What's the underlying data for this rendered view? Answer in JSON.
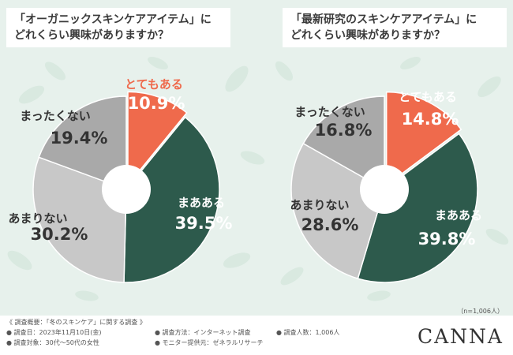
{
  "colors": {
    "totemo": "#ef6a4c",
    "maa": "#2d5a4c",
    "amari": "#c8c8c8",
    "mattaku": "#a9a9a9",
    "background": "#e7f1ec"
  },
  "chart_data": [
    {
      "type": "pie",
      "title": "「オーガニックスキンケアアイテム」にどれくらい興味がありますか？",
      "title_lines": [
        "「オーガニックスキンケアアイテム」に",
        "どれくらい興味がありますか？"
      ],
      "labels": [
        "とてもある",
        "まあある",
        "あまりない",
        "まったくない"
      ],
      "values": [
        10.9,
        39.5,
        30.2,
        19.4
      ],
      "value_labels": [
        "10.9%",
        "39.5%",
        "30.2%",
        "19.4%"
      ],
      "donut_hole": true
    },
    {
      "type": "pie",
      "title": "「最新研究のスキンケアアイテム」にどれくらい興味がありますか？",
      "title_lines": [
        "「最新研究のスキンケアアイテム」に",
        "どれくらい興味がありますか？"
      ],
      "labels": [
        "とてもある",
        "まあある",
        "あまりない",
        "まったくない"
      ],
      "values": [
        14.8,
        39.8,
        28.6,
        16.8
      ],
      "value_labels": [
        "14.8%",
        "39.8%",
        "28.6%",
        "16.8%"
      ],
      "donut_hole": true
    }
  ],
  "sample_note": "（n=1,006人）",
  "footer": {
    "overview": "《 調査概要：「冬のスキンケア」に関する調査 》",
    "date": "● 調査日：2023年11月10日(金)",
    "method": "● 調査方法：インターネット調査",
    "count": "● 調査人数：1,006人",
    "target": "● 調査対象：30代～50代の女性",
    "provider": "● モニター提供元：ゼネラルリサーチ"
  },
  "brand": "CANNA"
}
